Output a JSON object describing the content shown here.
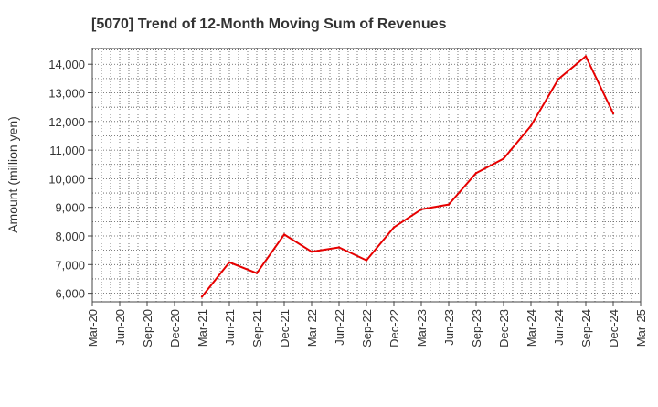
{
  "chart_data": {
    "type": "line",
    "title": "[5070]  Trend of 12-Month Moving Sum of Revenues",
    "xlabel": "",
    "ylabel": "Amount (million yen)",
    "x_ticks": [
      "Mar-20",
      "Jun-20",
      "Sep-20",
      "Dec-20",
      "Mar-21",
      "Jun-21",
      "Sep-21",
      "Dec-21",
      "Mar-22",
      "Jun-22",
      "Sep-22",
      "Dec-22",
      "Mar-23",
      "Jun-23",
      "Sep-23",
      "Dec-23",
      "Mar-24",
      "Jun-24",
      "Sep-24",
      "Dec-24",
      "Mar-25"
    ],
    "y_ticks": [
      6000,
      7000,
      8000,
      9000,
      10000,
      11000,
      12000,
      13000,
      14000
    ],
    "y_tick_labels": [
      "6,000",
      "7,000",
      "8,000",
      "9,000",
      "10,000",
      "11,000",
      "12,000",
      "13,000",
      "14,000"
    ],
    "ylim": [
      5700,
      14550
    ],
    "grid": true,
    "line_color": "#e60000",
    "series": [
      {
        "x": [
          "Mar-21",
          "Jun-21",
          "Sep-21",
          "Dec-21",
          "Mar-22",
          "Jun-22",
          "Sep-22",
          "Dec-22",
          "Mar-23",
          "Jun-23",
          "Sep-23",
          "Dec-23",
          "Mar-24",
          "Jun-24",
          "Sep-24",
          "Dec-24"
        ],
        "values": [
          5880,
          7080,
          6700,
          8050,
          7450,
          7600,
          7150,
          8300,
          8930,
          9100,
          10200,
          10700,
          11850,
          13480,
          14280,
          12280
        ]
      }
    ]
  }
}
